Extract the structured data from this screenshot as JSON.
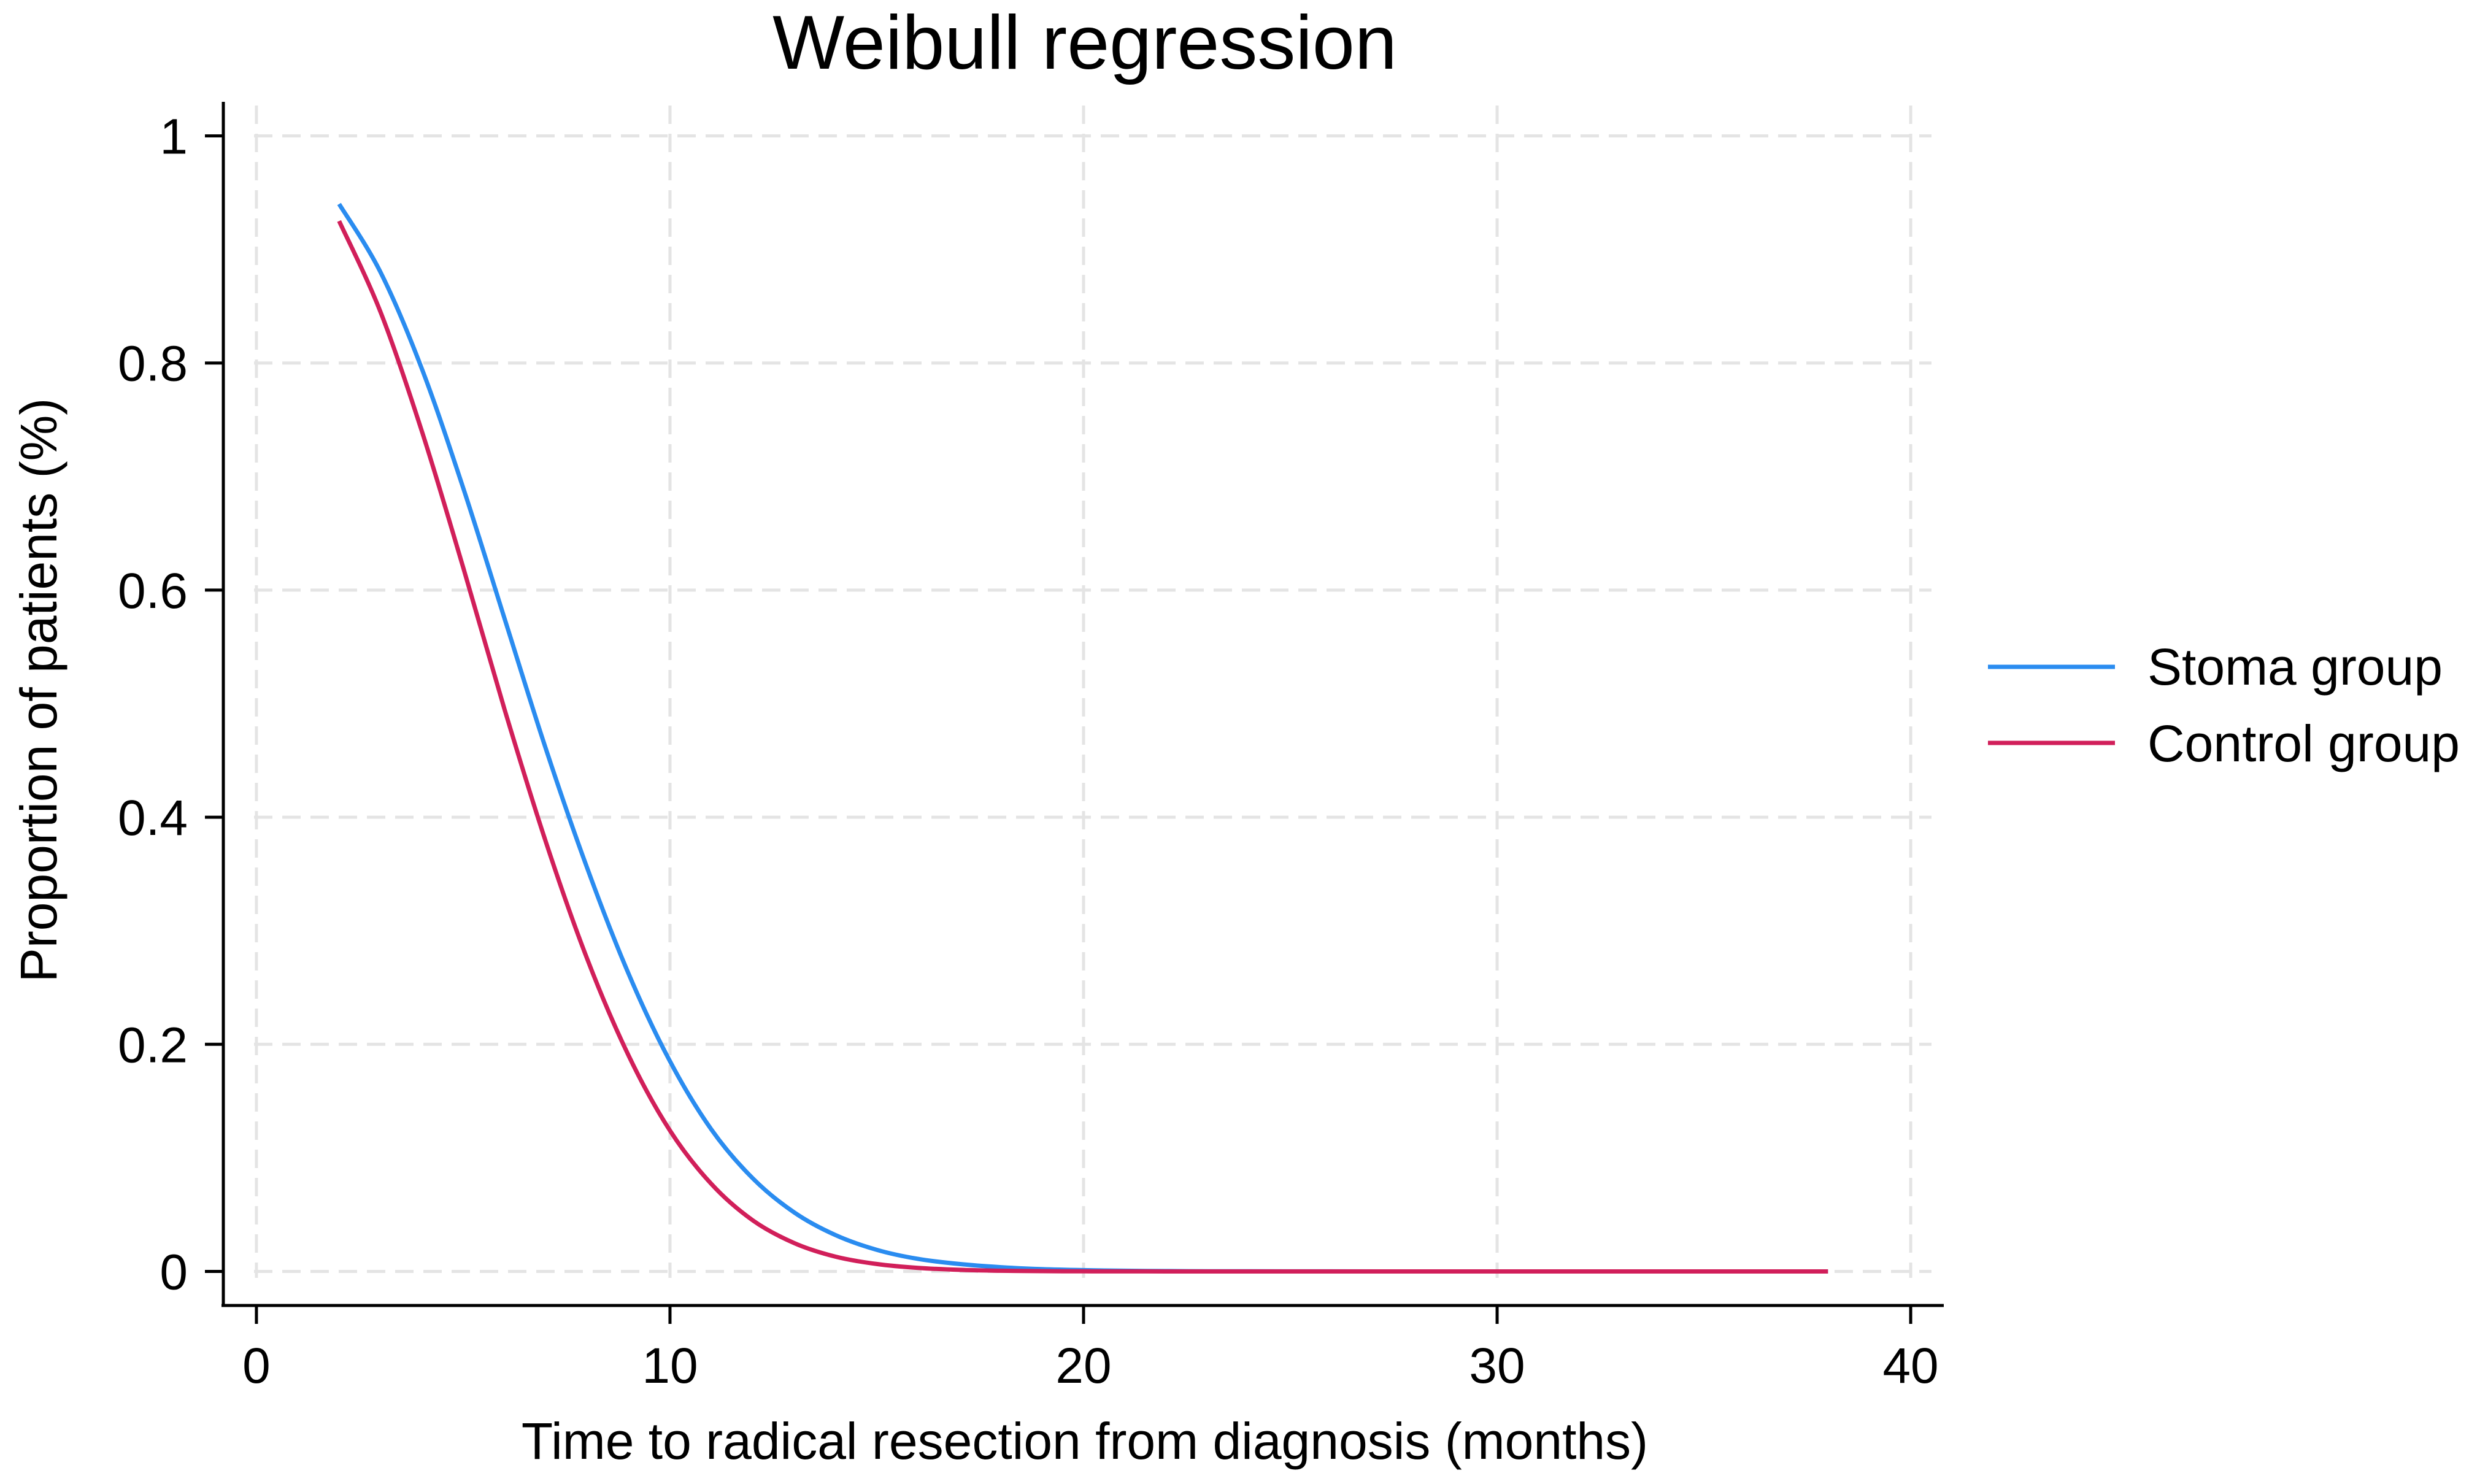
{
  "chart_data": {
    "type": "line",
    "title": "Weibull regression",
    "xlabel": "Time to radical resection from diagnosis (months)",
    "ylabel": "Proportion of patients (%)",
    "xlim": [
      -0.8,
      40.8
    ],
    "ylim": [
      -0.03,
      1.03
    ],
    "xticks": [
      0,
      10,
      20,
      30,
      40
    ],
    "xtick_labels": [
      "0",
      "10",
      "20",
      "30",
      "40"
    ],
    "yticks": [
      0,
      0.2,
      0.4,
      0.6,
      0.8,
      1
    ],
    "ytick_labels": [
      "0",
      "0.2",
      "0.4",
      "0.6",
      "0.8",
      "1"
    ],
    "grid": true,
    "legend_position": "right",
    "series": [
      {
        "name": "Stoma group",
        "color": "#2a8cf0",
        "x": [
          2,
          3,
          4,
          5,
          6,
          7,
          8,
          9,
          10,
          11,
          12,
          13,
          14,
          15,
          16,
          17,
          18,
          19,
          20,
          21,
          22,
          23,
          24,
          25,
          26,
          28,
          30,
          32,
          34,
          36,
          38
        ],
        "y": [
          0.94,
          0.88,
          0.795,
          0.69,
          0.575,
          0.46,
          0.355,
          0.262,
          0.185,
          0.125,
          0.082,
          0.052,
          0.032,
          0.019,
          0.011,
          0.0065,
          0.0037,
          0.002,
          0.0011,
          0.0006,
          0.0003,
          0.00015,
          8e-05,
          4e-05,
          2e-05,
          0.0,
          0.0,
          0.0,
          0.0,
          0.0,
          0.0
        ]
      },
      {
        "name": "Control group",
        "color": "#d11f5a",
        "x": [
          2,
          3,
          4,
          5,
          6,
          7,
          8,
          9,
          10,
          11,
          12,
          13,
          14,
          15,
          16,
          17,
          18,
          19,
          20,
          21,
          22,
          23,
          24,
          25,
          26,
          28,
          30,
          32,
          34,
          36,
          38
        ],
        "y": [
          0.925,
          0.845,
          0.74,
          0.62,
          0.495,
          0.378,
          0.275,
          0.19,
          0.124,
          0.077,
          0.045,
          0.025,
          0.013,
          0.0065,
          0.0031,
          0.0014,
          0.0006,
          0.00025,
          0.0001,
          4e-05,
          1e-05,
          0.0,
          0.0,
          0.0,
          0.0,
          0.0,
          0.0,
          0.0,
          0.0,
          0.0,
          0.0
        ]
      }
    ]
  }
}
